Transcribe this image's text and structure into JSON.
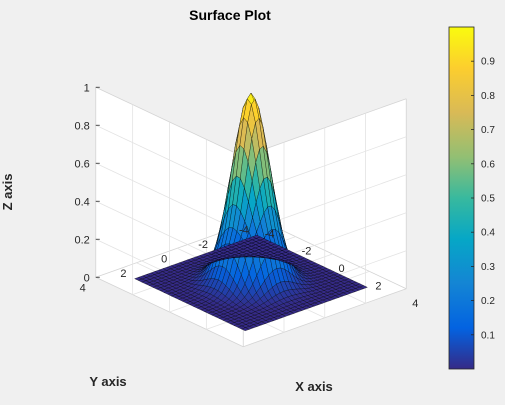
{
  "chart_data": {
    "type": "surface",
    "title": "Surface Plot",
    "xlabel": "X axis",
    "ylabel": "Y axis",
    "zlabel": "Z axis",
    "function": "z = exp(-(x^2 + y^2))",
    "x_range": [
      -3,
      3
    ],
    "y_range": [
      -3,
      3
    ],
    "grid_points": 31,
    "xlim": [
      -4,
      4
    ],
    "ylim": [
      -4,
      4
    ],
    "zlim": [
      0,
      1
    ],
    "x_ticks": [
      "-4",
      "-2",
      "0",
      "2",
      "4"
    ],
    "y_ticks": [
      "-4",
      "-2",
      "0",
      "2",
      "4"
    ],
    "z_ticks": [
      "0",
      "0.2",
      "0.4",
      "0.6",
      "0.8",
      "1"
    ],
    "colormap": "parula",
    "colorbar": {
      "range": [
        0,
        1
      ],
      "ticks": [
        "0.1",
        "0.2",
        "0.3",
        "0.4",
        "0.5",
        "0.6",
        "0.7",
        "0.8",
        "0.9"
      ]
    },
    "grid": true,
    "colorbar_position": "right"
  }
}
